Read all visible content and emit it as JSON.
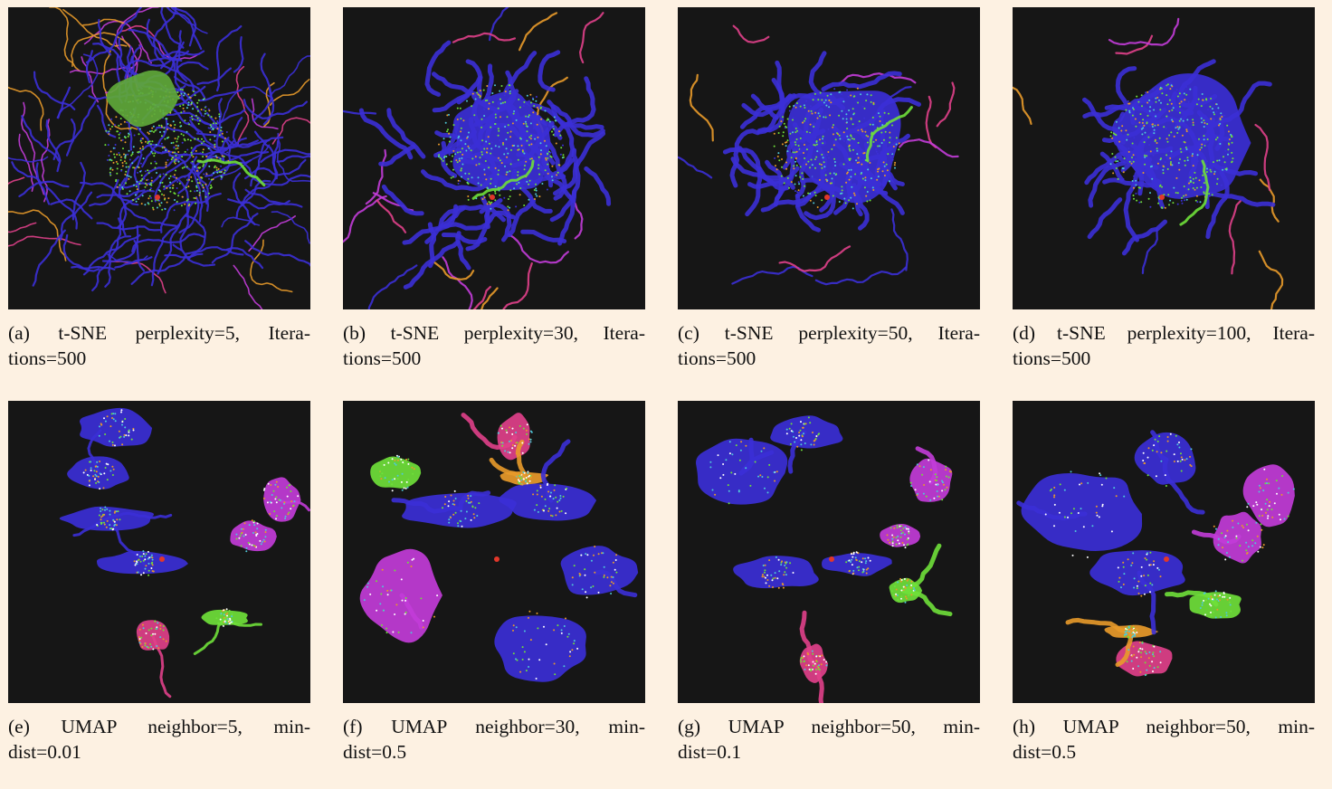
{
  "panels": [
    {
      "label": "(a)",
      "line1": "t-SNE perplexity=5, Itera-",
      "line2": "tions=500",
      "method": "tsne"
    },
    {
      "label": "(b)",
      "line1": "t-SNE perplexity=30, Itera-",
      "line2": "tions=500",
      "method": "tsne"
    },
    {
      "label": "(c)",
      "line1": "t-SNE perplexity=50, Itera-",
      "line2": "tions=500",
      "method": "tsne"
    },
    {
      "label": "(d)",
      "line1": "t-SNE perplexity=100, Itera-",
      "line2": "tions=500",
      "method": "tsne"
    },
    {
      "label": "(e)",
      "line1": "UMAP neighbor=5, min-",
      "line2": "dist=0.01",
      "method": "umap"
    },
    {
      "label": "(f)",
      "line1": "UMAP neighbor=30, min-",
      "line2": "dist=0.5",
      "method": "umap"
    },
    {
      "label": "(g)",
      "line1": "UMAP neighbor=50, min-",
      "line2": "dist=0.1",
      "method": "umap"
    },
    {
      "label": "(h)",
      "line1": "UMAP neighbor=50, min-",
      "line2": "dist=0.5",
      "method": "umap"
    }
  ],
  "colors": {
    "background": "#fdf1e2",
    "plot_bg": "#161616",
    "cluster_blue": "#3b2fd6",
    "cluster_green": "#6fe03a",
    "cluster_magenta": "#c23cd8",
    "cluster_pink": "#e0408a",
    "cluster_orange": "#e89a2a",
    "cluster_red": "#e2372a",
    "cluster_cyan": "#4fc8d8"
  }
}
